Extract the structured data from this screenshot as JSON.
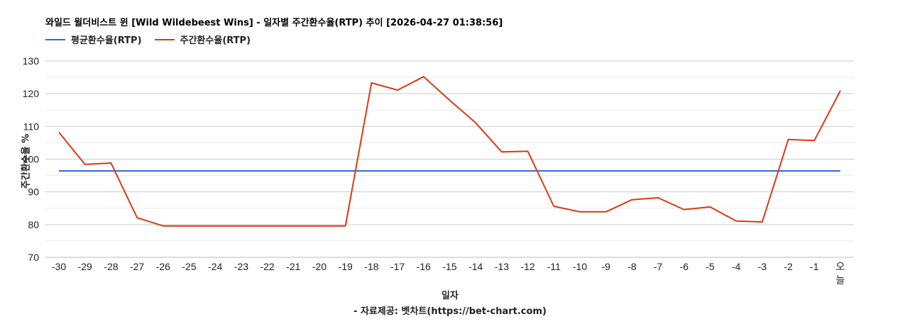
{
  "title": "와일드 윌더비스트 윈 [Wild Wildebeest Wins] - 일자별 주간환수율(RTP) 추이 [2026-04-27 01:38:56]",
  "legend": [
    {
      "label": "평균환수율(RTP)",
      "color": "#3366cc"
    },
    {
      "label": "주간환수율(RTP)",
      "color": "#dc3912"
    }
  ],
  "x_title": "일자",
  "y_title": "주간환수율 %",
  "credit": "- 자료제공: 벳차트(https://bet-chart.com)",
  "chart_data": {
    "type": "line",
    "title": "와일드 윌더비스트 윈 [Wild Wildebeest Wins] - 일자별 주간환수율(RTP) 추이 [2026-04-27 01:38:56]",
    "xlabel": "일자",
    "ylabel": "주간환수율 %",
    "ylim": [
      70,
      130
    ],
    "yticks": [
      70,
      80,
      90,
      100,
      110,
      120,
      130
    ],
    "grid": true,
    "legend_position": "top",
    "categories": [
      "-30",
      "-29",
      "-28",
      "-27",
      "-26",
      "-25",
      "-24",
      "-23",
      "-22",
      "-21",
      "-20",
      "-19",
      "-18",
      "-17",
      "-16",
      "-15",
      "-14",
      "-13",
      "-12",
      "-11",
      "-10",
      "-9",
      "-8",
      "-7",
      "-6",
      "-5",
      "-4",
      "-3",
      "-2",
      "-1",
      "오늘"
    ],
    "series": [
      {
        "name": "평균환수율(RTP)",
        "color": "#3366cc",
        "values": [
          96.4,
          96.4,
          96.4,
          96.4,
          96.4,
          96.4,
          96.4,
          96.4,
          96.4,
          96.4,
          96.4,
          96.4,
          96.4,
          96.4,
          96.4,
          96.4,
          96.4,
          96.4,
          96.4,
          96.4,
          96.4,
          96.4,
          96.4,
          96.4,
          96.4,
          96.4,
          96.4,
          96.4,
          96.4,
          96.4,
          96.4
        ]
      },
      {
        "name": "주간환수율(RTP)",
        "color": "#dc3912",
        "values": [
          108.2,
          98.4,
          98.8,
          82.1,
          79.6,
          79.6,
          79.6,
          79.6,
          79.6,
          79.6,
          79.6,
          79.6,
          123.3,
          121.1,
          125.2,
          118.0,
          111.1,
          102.2,
          102.4,
          85.6,
          83.9,
          83.9,
          87.6,
          88.2,
          84.6,
          85.4,
          81.1,
          80.8,
          106.0,
          105.7,
          120.9
        ]
      }
    ]
  }
}
